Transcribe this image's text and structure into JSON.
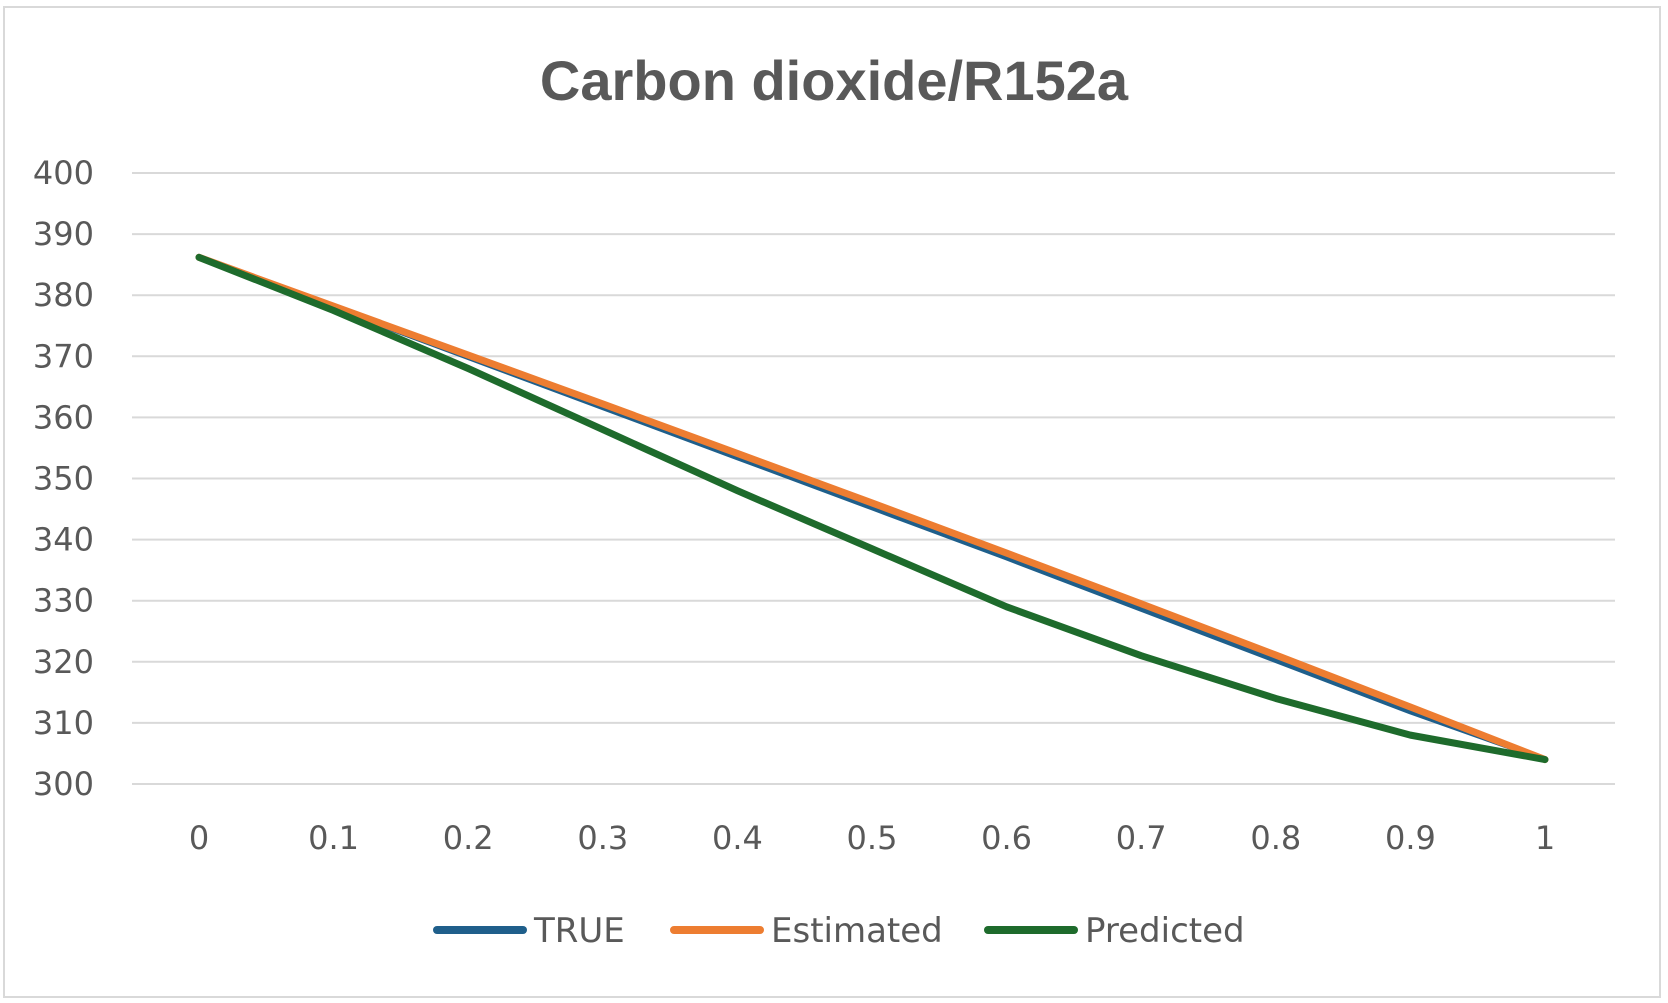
{
  "chart_data": {
    "type": "line",
    "title": "Carbon dioxide/R152a",
    "xlabel": "",
    "ylabel": "",
    "categories": [
      "0",
      "0.1",
      "0.2",
      "0.3",
      "0.4",
      "0.5",
      "0.6",
      "0.7",
      "0.8",
      "0.9",
      "1"
    ],
    "ylim": [
      300,
      400
    ],
    "yticks": [
      "300",
      "310",
      "320",
      "330",
      "340",
      "350",
      "360",
      "370",
      "380",
      "390",
      "400"
    ],
    "grid": true,
    "legend": "bottom",
    "series": [
      {
        "name": "TRUE",
        "color": "#1f5f8b",
        "values": [
          386.2,
          378.0,
          369.8,
          361.6,
          353.4,
          345.2,
          337.0,
          328.6,
          320.2,
          311.8,
          304.0
        ]
      },
      {
        "name": "Estimated",
        "color": "#ed7d31",
        "values": [
          386.2,
          378.2,
          370.2,
          362.2,
          354.1,
          346.0,
          337.8,
          329.5,
          321.1,
          312.6,
          304.0
        ]
      },
      {
        "name": "Predicted",
        "color": "#1e6b2c",
        "values": [
          386.2,
          377.5,
          368.0,
          358.0,
          348.0,
          338.5,
          329.0,
          321.0,
          314.0,
          308.0,
          304.0
        ]
      }
    ]
  }
}
